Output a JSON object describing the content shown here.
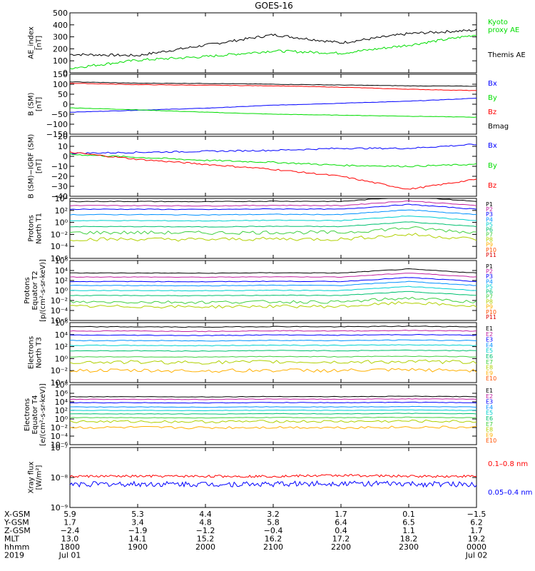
{
  "title": "GOES-16",
  "colors": {
    "black": "#000000",
    "red": "#ff0000",
    "green": "#00dd00",
    "blue": "#0000ff",
    "series": [
      "#000000",
      "#c020a0",
      "#0000ff",
      "#0090ff",
      "#00d0d0",
      "#00c070",
      "#40d040",
      "#b0d000",
      "#ffb000",
      "#ff5000",
      "#dd0000"
    ]
  },
  "panels": [
    {
      "id": "ae",
      "ylabel": [
        "AE_index",
        "[nT]"
      ],
      "yticks": [
        "500",
        "400",
        "300",
        "200",
        "100",
        "0"
      ],
      "legend": [
        {
          "text": "Kyoto",
          "color": "green"
        },
        {
          "text": "proxy AE",
          "color": "green"
        },
        {
          "text": "Themis AE",
          "color": "black"
        }
      ]
    },
    {
      "id": "bsm",
      "ylabel": [
        "B (SM)",
        "[nT]"
      ],
      "yticks": [
        "150",
        "100",
        "50",
        "0",
        "−50",
        "−100",
        "−150"
      ],
      "legend": [
        {
          "text": "Bx",
          "color": "blue"
        },
        {
          "text": "By",
          "color": "green"
        },
        {
          "text": "Bz",
          "color": "red"
        },
        {
          "text": "Bmag",
          "color": "black"
        }
      ]
    },
    {
      "id": "bigrf",
      "ylabel": [
        "B (SM)−IGRF (SM)",
        "[nT]"
      ],
      "yticks": [
        "20",
        "10",
        "0",
        "−10",
        "−20",
        "−30",
        "−40"
      ],
      "legend": [
        {
          "text": "Bx",
          "color": "blue"
        },
        {
          "text": "By",
          "color": "green"
        },
        {
          "text": "Bz",
          "color": "red"
        }
      ]
    },
    {
      "id": "protons_north",
      "ylabel": [
        "Protons",
        "North T1"
      ],
      "yticks": [
        "10⁴",
        "10²",
        "10⁰",
        "10⁻²",
        "10⁻⁴",
        "10⁻⁶"
      ],
      "legend_channels": [
        "P1",
        "P2",
        "P3",
        "P4",
        "P5",
        "P6",
        "P7",
        "P8",
        "P9",
        "P10",
        "P11"
      ]
    },
    {
      "id": "protons_equator",
      "ylabel": [
        "Protons",
        "Equator T2",
        "[p/(cm²-s-sr-keV)]"
      ],
      "yticks": [
        "10⁶",
        "10⁴",
        "10²",
        "10⁰",
        "10⁻²",
        "10⁻⁴",
        "10⁻⁶"
      ],
      "legend_channels": [
        "P1",
        "P2",
        "P3",
        "P4",
        "P5",
        "P6",
        "P7",
        "P8",
        "P9",
        "P10",
        "P11"
      ]
    },
    {
      "id": "electrons_north",
      "ylabel": [
        "Electrons",
        "North T3"
      ],
      "yticks": [
        "10⁶",
        "10⁴",
        "10²",
        "10⁰",
        "10⁻²",
        "10⁻⁴"
      ],
      "legend_channels": [
        "E1",
        "E2",
        "E3",
        "E4",
        "E5",
        "E6",
        "E7",
        "E8",
        "E9",
        "E10"
      ]
    },
    {
      "id": "electrons_equator",
      "ylabel": [
        "Electrons",
        "Equator T4",
        "[e/(cm²-s-sr-keV)]"
      ],
      "yticks": [
        "10⁸",
        "10⁶",
        "10⁴",
        "10²",
        "10⁰",
        "10⁻²",
        "10⁻⁴",
        "10⁻⁶"
      ],
      "legend_channels": [
        "E1",
        "E2",
        "E3",
        "E4",
        "E5",
        "E6",
        "E7",
        "E8",
        "E9",
        "E10"
      ]
    },
    {
      "id": "xray",
      "ylabel": [
        "Xray flux",
        "[W/m²]"
      ],
      "yticks": [
        "10⁻⁷",
        "10⁻⁸",
        "10⁻⁹"
      ],
      "legend": [
        {
          "text": "0.1–0.8 nm",
          "color": "red"
        },
        {
          "text": "0.05–0.4 nm",
          "color": "blue"
        }
      ]
    }
  ],
  "xaxis": {
    "row_labels": [
      "X-GSM",
      "Y-GSM",
      "Z-GSM",
      "MLT",
      "hhmm",
      "2019"
    ],
    "columns": [
      [
        "5.9",
        "1.7",
        "−2.4",
        "13.0",
        "1800",
        "Jul 01"
      ],
      [
        "5.3",
        "3.4",
        "−1.9",
        "14.1",
        "1900",
        ""
      ],
      [
        "4.4",
        "4.8",
        "−1.2",
        "15.2",
        "2000",
        ""
      ],
      [
        "3.2",
        "5.8",
        "−0.4",
        "16.2",
        "2100",
        ""
      ],
      [
        "1.7",
        "6.4",
        "0.4",
        "17.2",
        "2200",
        ""
      ],
      [
        "0.1",
        "6.5",
        "1.1",
        "18.2",
        "2300",
        ""
      ],
      [
        "−1.5",
        "6.2",
        "1.7",
        "19.2",
        "0000",
        "Jul 02"
      ]
    ]
  },
  "chart_data": [
    {
      "type": "line",
      "title": "GOES-16",
      "ylabel": "AE_index [nT]",
      "ylim": [
        0,
        520
      ],
      "x": [
        "1800",
        "1900",
        "2000",
        "2100",
        "2200",
        "2300",
        "0000"
      ],
      "series": [
        {
          "name": "Themis AE",
          "values": [
            160,
            150,
            240,
            330,
            260,
            340,
            370
          ]
        },
        {
          "name": "Kyoto proxy AE",
          "values": [
            40,
            110,
            140,
            190,
            170,
            240,
            330
          ]
        }
      ]
    },
    {
      "type": "line",
      "ylabel": "B (SM) [nT]",
      "ylim": [
        -150,
        150
      ],
      "x": [
        "1800",
        "1900",
        "2000",
        "2100",
        "2200",
        "2300",
        "0000"
      ],
      "series": [
        {
          "name": "Bx",
          "values": [
            -40,
            -30,
            -20,
            -5,
            5,
            15,
            30
          ]
        },
        {
          "name": "By",
          "values": [
            -18,
            -28,
            -40,
            -50,
            -55,
            -60,
            -65
          ]
        },
        {
          "name": "Bz",
          "values": [
            105,
            98,
            95,
            92,
            85,
            75,
            68
          ]
        },
        {
          "name": "Bmag",
          "values": [
            112,
            105,
            104,
            100,
            96,
            92,
            90
          ]
        }
      ]
    },
    {
      "type": "line",
      "ylabel": "B (SM)−IGRF (SM) [nT]",
      "ylim": [
        -40,
        20
      ],
      "x": [
        "1800",
        "1900",
        "2000",
        "2100",
        "2200",
        "2300",
        "0000"
      ],
      "series": [
        {
          "name": "Bx",
          "values": [
            3,
            4,
            5,
            6,
            8,
            8,
            12
          ]
        },
        {
          "name": "By",
          "values": [
            2,
            -1,
            -4,
            -6,
            -9,
            -10,
            -8
          ]
        },
        {
          "name": "Bz",
          "values": [
            4,
            -3,
            -8,
            -13,
            -20,
            -33,
            -23
          ]
        }
      ]
    },
    {
      "type": "line",
      "ylabel": "Protons North T1 (log10)",
      "ylim": [
        -6,
        4
      ],
      "series": [
        {
          "name": "P1",
          "values": [
            3.5
          ]
        },
        {
          "name": "P2",
          "values": [
            2.8
          ]
        },
        {
          "name": "P3",
          "values": [
            2.2
          ]
        },
        {
          "name": "P4",
          "values": [
            1.3
          ]
        },
        {
          "name": "P5",
          "values": [
            0.3
          ]
        },
        {
          "name": "P6",
          "values": [
            -0.7
          ]
        },
        {
          "name": "P7",
          "values": [
            -1.7
          ]
        },
        {
          "name": "P8",
          "values": [
            -2.8
          ]
        }
      ]
    },
    {
      "type": "line",
      "ylabel": "Protons Equator T2 (log10)",
      "ylim": [
        -6,
        6
      ],
      "series": [
        {
          "name": "P1",
          "values": [
            3.5
          ]
        },
        {
          "name": "P2",
          "values": [
            2.7
          ]
        },
        {
          "name": "P3",
          "values": [
            1.8
          ]
        },
        {
          "name": "P4",
          "values": [
            1.0
          ]
        },
        {
          "name": "P5",
          "values": [
            0
          ]
        },
        {
          "name": "P6",
          "values": [
            -1.0
          ]
        },
        {
          "name": "P7",
          "values": [
            -2.3
          ]
        },
        {
          "name": "P8",
          "values": [
            -3.2
          ]
        }
      ]
    },
    {
      "type": "line",
      "ylabel": "Electrons North T3 (log10)",
      "ylim": [
        -4,
        6
      ],
      "series": [
        {
          "name": "E1",
          "values": [
            5.3
          ]
        },
        {
          "name": "E2",
          "values": [
            4.6
          ]
        },
        {
          "name": "E3",
          "values": [
            3.9
          ]
        },
        {
          "name": "E4",
          "values": [
            3.0
          ]
        },
        {
          "name": "E5",
          "values": [
            2.2
          ]
        },
        {
          "name": "E6",
          "values": [
            1.3
          ]
        },
        {
          "name": "E7",
          "values": [
            0.3
          ]
        },
        {
          "name": "E8",
          "values": [
            -0.6
          ]
        },
        {
          "name": "E9",
          "values": [
            -2
          ]
        }
      ]
    },
    {
      "type": "line",
      "ylabel": "Electrons Equator T4 (log10)",
      "ylim": [
        -6,
        8
      ],
      "series": [
        {
          "name": "E1",
          "values": [
            5.2
          ]
        },
        {
          "name": "E2",
          "values": [
            4.6
          ]
        },
        {
          "name": "E3",
          "values": [
            3.8
          ]
        },
        {
          "name": "E4",
          "values": [
            2.8
          ]
        },
        {
          "name": "E5",
          "values": [
            2
          ]
        },
        {
          "name": "E6",
          "values": [
            1.2
          ]
        },
        {
          "name": "E7",
          "values": [
            0.3
          ]
        },
        {
          "name": "E8",
          "values": [
            -0.6
          ]
        },
        {
          "name": "E9",
          "values": [
            -2
          ]
        }
      ]
    },
    {
      "type": "line",
      "ylabel": "Xray flux [W/m²]",
      "ylim": [
        1e-09,
        1e-07
      ],
      "series": [
        {
          "name": "0.1–0.8 nm",
          "values": [
            1.1e-08
          ]
        },
        {
          "name": "0.05–0.4 nm",
          "values": [
            6e-09
          ]
        }
      ]
    }
  ]
}
